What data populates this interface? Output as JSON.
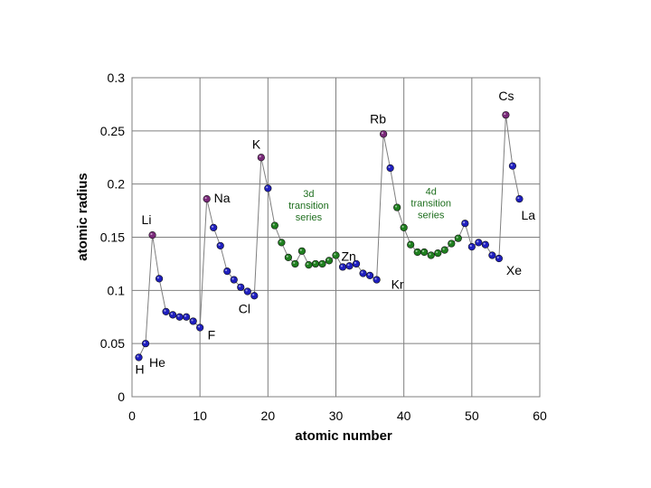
{
  "chart_data": {
    "type": "scatter",
    "title": "",
    "xlabel": "atomic number",
    "ylabel": "atomic radius",
    "xlim": [
      0,
      60
    ],
    "ylim": [
      0,
      0.3
    ],
    "xticks": [
      0,
      10,
      20,
      30,
      40,
      50,
      60
    ],
    "yticks": [
      0,
      0.05,
      0.1,
      0.15,
      0.2,
      0.25,
      0.3
    ],
    "xtick_labels": [
      "0",
      "10",
      "20",
      "30",
      "40",
      "50",
      "60"
    ],
    "ytick_labels": [
      "0",
      "0.05",
      "0.1",
      "0.15",
      "0.2",
      "0.25",
      "0.3"
    ],
    "grid": "vertical and horizontal major gridlines",
    "legend": "none",
    "marker_colors": {
      "alkali": "#7a2a7a",
      "main": "#1f1fbf",
      "transition": "#1f7f1f",
      "line": "#7f7f7f",
      "grid": "#7f7f7f",
      "plot_background": "#ffffff"
    },
    "series": [
      {
        "group": "main",
        "x": [
          1,
          2
        ],
        "y": [
          0.037,
          0.05
        ]
      },
      {
        "group": "alkali",
        "x": [
          3
        ],
        "y": [
          0.152
        ]
      },
      {
        "group": "main",
        "x": [
          4,
          5,
          6,
          7,
          8,
          9,
          10
        ],
        "y": [
          0.111,
          0.08,
          0.077,
          0.075,
          0.075,
          0.071,
          0.065
        ]
      },
      {
        "group": "alkali",
        "x": [
          11
        ],
        "y": [
          0.186
        ]
      },
      {
        "group": "main",
        "x": [
          12,
          13,
          14,
          15,
          16,
          17,
          18
        ],
        "y": [
          0.159,
          0.142,
          0.118,
          0.11,
          0.103,
          0.099,
          0.095
        ]
      },
      {
        "group": "alkali",
        "x": [
          19
        ],
        "y": [
          0.225
        ]
      },
      {
        "group": "main",
        "x": [
          20
        ],
        "y": [
          0.196
        ]
      },
      {
        "group": "transition",
        "x": [
          21,
          22,
          23,
          24,
          25,
          26,
          27,
          28,
          29,
          30
        ],
        "y": [
          0.161,
          0.145,
          0.131,
          0.125,
          0.137,
          0.124,
          0.125,
          0.125,
          0.128,
          0.133
        ]
      },
      {
        "group": "main",
        "x": [
          31,
          32,
          33,
          34,
          35,
          36
        ],
        "y": [
          0.122,
          0.123,
          0.125,
          0.116,
          0.114,
          0.11
        ]
      },
      {
        "group": "alkali",
        "x": [
          37
        ],
        "y": [
          0.247
        ]
      },
      {
        "group": "main",
        "x": [
          38
        ],
        "y": [
          0.215
        ]
      },
      {
        "group": "transition",
        "x": [
          39,
          40,
          41,
          42,
          43,
          44,
          45,
          46,
          47,
          48
        ],
        "y": [
          0.178,
          0.159,
          0.143,
          0.136,
          0.136,
          0.133,
          0.135,
          0.138,
          0.144,
          0.149
        ]
      },
      {
        "group": "main",
        "x": [
          49,
          50,
          51,
          52,
          53,
          54
        ],
        "y": [
          0.163,
          0.141,
          0.145,
          0.143,
          0.133,
          0.13
        ]
      },
      {
        "group": "alkali",
        "x": [
          55
        ],
        "y": [
          0.265
        ]
      },
      {
        "group": "main",
        "x": [
          56,
          57
        ],
        "y": [
          0.217,
          0.186
        ]
      }
    ],
    "element_labels": [
      {
        "text": "H",
        "x": 1,
        "y": 0.037
      },
      {
        "text": "He",
        "x": 2,
        "y": 0.05
      },
      {
        "text": "Li",
        "x": 3,
        "y": 0.152
      },
      {
        "text": "F",
        "x": 9,
        "y": 0.071
      },
      {
        "text": "Na",
        "x": 11,
        "y": 0.186
      },
      {
        "text": "Cl",
        "x": 17,
        "y": 0.099
      },
      {
        "text": "K",
        "x": 19,
        "y": 0.225
      },
      {
        "text": "Zn",
        "x": 30,
        "y": 0.133
      },
      {
        "text": "Kr",
        "x": 36,
        "y": 0.11
      },
      {
        "text": "Rb",
        "x": 37,
        "y": 0.247
      },
      {
        "text": "La",
        "x": 57,
        "y": 0.186
      },
      {
        "text": "Xe",
        "x": 54,
        "y": 0.13
      },
      {
        "text": "Cs",
        "x": 55,
        "y": 0.265
      }
    ],
    "annotations": [
      {
        "lines": [
          "3d",
          "transition",
          "series"
        ],
        "x": 26,
        "y": 0.188
      },
      {
        "lines": [
          "4d",
          "transition",
          "series"
        ],
        "x": 44,
        "y": 0.19
      }
    ]
  }
}
